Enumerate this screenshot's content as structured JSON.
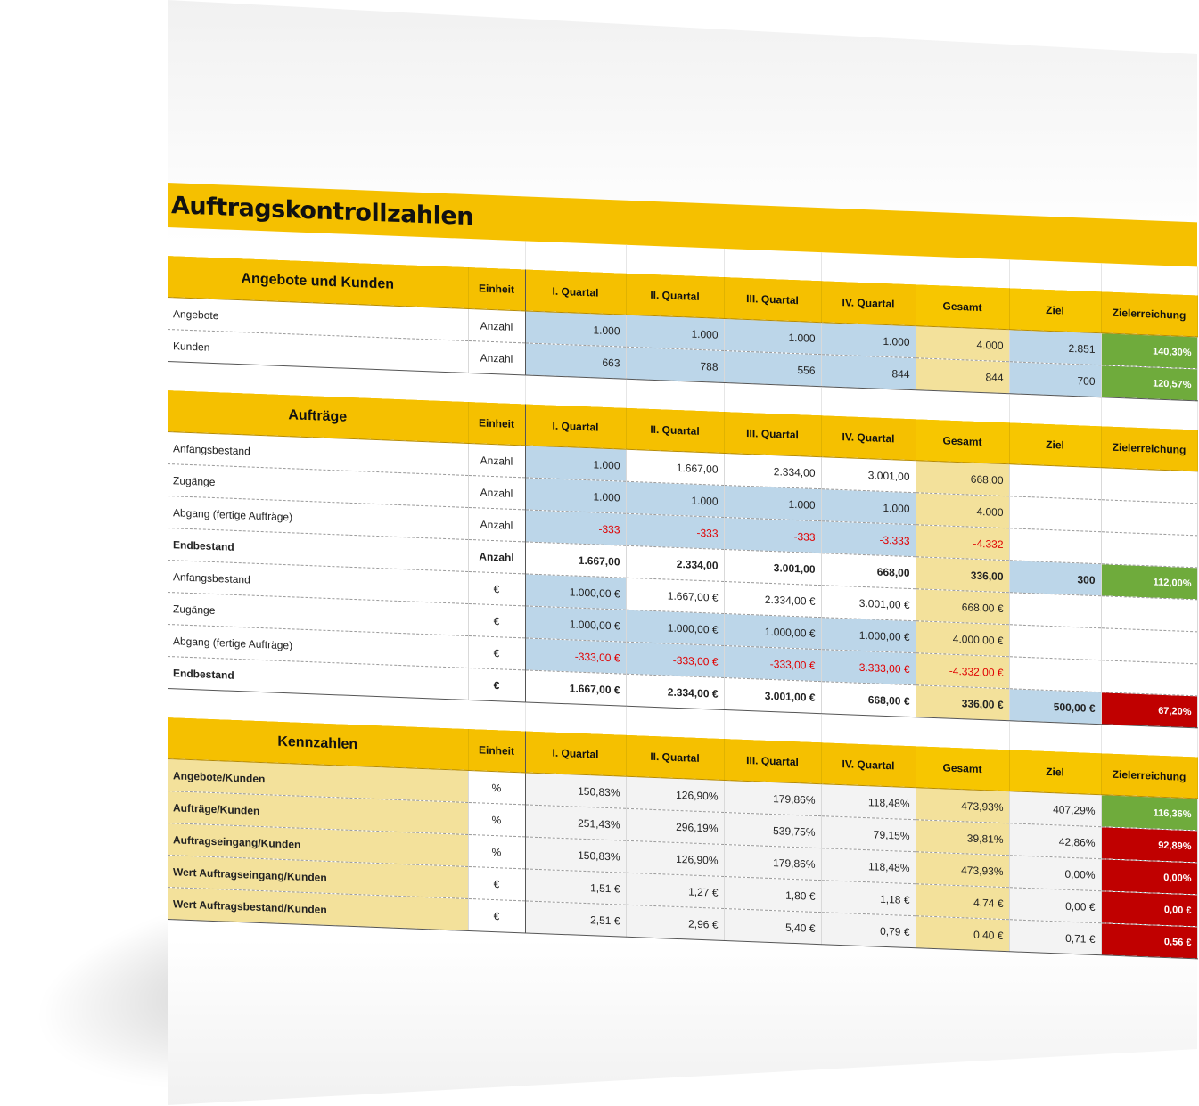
{
  "title": "Auftragskontrollzahlen",
  "columns": [
    "Einheit",
    "I. Quartal",
    "II. Quartal",
    "III. Quartal",
    "IV. Quartal",
    "Gesamt",
    "Ziel",
    "Zielerreichung"
  ],
  "colors": {
    "header": "#f5c000",
    "input_blue": "#bcd6e9",
    "total_gold": "#f3e19b",
    "achieved_green": "#6fab3c",
    "missed_red": "#c00000",
    "negative_text": "#e00000"
  },
  "sections": [
    {
      "heading": "Angebote und Kunden",
      "rows": [
        {
          "label": "Angebote",
          "unit": "Anzahl",
          "q1": "1.000",
          "q2": "1.000",
          "q3": "1.000",
          "q4": "1.000",
          "total": "4.000",
          "goal": "2.851",
          "achievement": "140,30%"
        },
        {
          "label": "Kunden",
          "unit": "Anzahl",
          "q1": "663",
          "q2": "788",
          "q3": "556",
          "q4": "844",
          "total": "844",
          "goal": "700",
          "achievement": "120,57%"
        }
      ]
    },
    {
      "heading": "Aufträge",
      "rows": [
        {
          "label": "Anfangsbestand",
          "unit": "Anzahl",
          "q1": "1.000",
          "q2": "1.667,00",
          "q3": "2.334,00",
          "q4": "3.001,00",
          "total": "668,00",
          "goal": "",
          "achievement": ""
        },
        {
          "label": "Zugänge",
          "unit": "Anzahl",
          "q1": "1.000",
          "q2": "1.000",
          "q3": "1.000",
          "q4": "1.000",
          "total": "4.000",
          "goal": "",
          "achievement": ""
        },
        {
          "label": "Abgang (fertige Aufträge)",
          "unit": "Anzahl",
          "q1": "-333",
          "q2": "-333",
          "q3": "-333",
          "q4": "-3.333",
          "total": "-4.332",
          "goal": "",
          "achievement": ""
        },
        {
          "label": "Endbestand",
          "unit": "Anzahl",
          "q1": "1.667,00",
          "q2": "2.334,00",
          "q3": "3.001,00",
          "q4": "668,00",
          "total": "336,00",
          "goal": "300",
          "achievement": "112,00%"
        },
        {
          "label": "Anfangsbestand",
          "unit": "€",
          "q1": "1.000,00 €",
          "q2": "1.667,00 €",
          "q3": "2.334,00 €",
          "q4": "3.001,00 €",
          "total": "668,00 €",
          "goal": "",
          "achievement": ""
        },
        {
          "label": "Zugänge",
          "unit": "€",
          "q1": "1.000,00 €",
          "q2": "1.000,00 €",
          "q3": "1.000,00 €",
          "q4": "1.000,00 €",
          "total": "4.000,00 €",
          "goal": "",
          "achievement": ""
        },
        {
          "label": "Abgang (fertige Aufträge)",
          "unit": "€",
          "q1": "-333,00 €",
          "q2": "-333,00 €",
          "q3": "-333,00 €",
          "q4": "-3.333,00 €",
          "total": "-4.332,00 €",
          "goal": "",
          "achievement": ""
        },
        {
          "label": "Endbestand",
          "unit": "€",
          "q1": "1.667,00 €",
          "q2": "2.334,00 €",
          "q3": "3.001,00 €",
          "q4": "668,00 €",
          "total": "336,00 €",
          "goal": "500,00 €",
          "achievement": "67,20%"
        }
      ]
    },
    {
      "heading": "Kennzahlen",
      "rows": [
        {
          "label": "Angebote/Kunden",
          "unit": "%",
          "q1": "150,83%",
          "q2": "126,90%",
          "q3": "179,86%",
          "q4": "118,48%",
          "total": "473,93%",
          "goal": "407,29%",
          "achievement": "116,36%"
        },
        {
          "label": "Aufträge/Kunden",
          "unit": "%",
          "q1": "251,43%",
          "q2": "296,19%",
          "q3": "539,75%",
          "q4": "79,15%",
          "total": "39,81%",
          "goal": "42,86%",
          "achievement": "92,89%"
        },
        {
          "label": "Auftragseingang/Kunden",
          "unit": "%",
          "q1": "150,83%",
          "q2": "126,90%",
          "q3": "179,86%",
          "q4": "118,48%",
          "total": "473,93%",
          "goal": "0,00%",
          "achievement": "0,00%"
        },
        {
          "label": "Wert Auftragseingang/Kunden",
          "unit": "€",
          "q1": "1,51 €",
          "q2": "1,27 €",
          "q3": "1,80 €",
          "q4": "1,18 €",
          "total": "4,74 €",
          "goal": "0,00 €",
          "achievement": "0,00 €"
        },
        {
          "label": "Wert Auftragsbestand/Kunden",
          "unit": "€",
          "q1": "2,51 €",
          "q2": "2,96 €",
          "q3": "5,40 €",
          "q4": "0,79 €",
          "total": "0,40 €",
          "goal": "0,71 €",
          "achievement": "0,56 €"
        }
      ]
    }
  ]
}
